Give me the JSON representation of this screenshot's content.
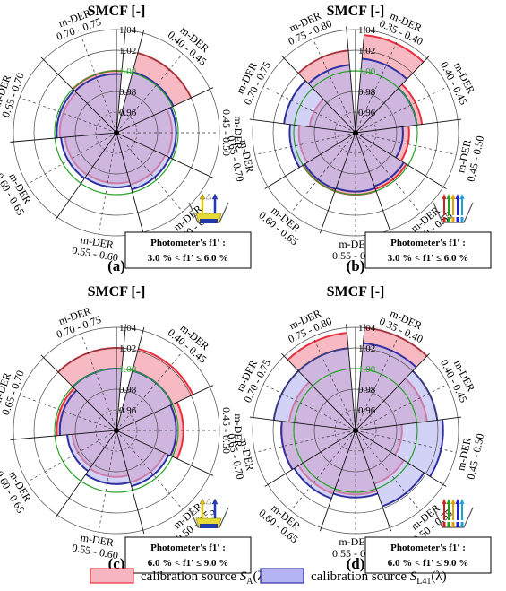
{
  "chart_data": [
    {
      "type": "polar-bar",
      "panel_label": "(a)",
      "title": "SMCF [-]",
      "rlim": [
        0.94,
        1.04
      ],
      "r_ticks": [
        "0.96",
        "0.98",
        "1.00",
        "1.02",
        "1.04"
      ],
      "sectors": [
        "m-DER\n0.40 - 0.45",
        "m-DER\n0.45 - 0.50",
        "m-DER\n0.50 - 0.55",
        "m-DER\n0.55 - 0.60",
        "m-DER\n0.60 - 0.65",
        "m-DER\n0.65 - 0.70",
        "m-DER\n0.70 - 0.75"
      ],
      "sector_labels": [
        {
          "top": "m-DER",
          "bottom": "0.40 - 0.45"
        },
        {
          "top": "m-DER",
          "bottom": "0.45 - 0.50"
        },
        {
          "top": "m-DER",
          "bottom": "0.50 - 0.55"
        },
        {
          "top": "m-DER",
          "bottom": "0.55 - 0.60"
        },
        {
          "top": "m-DER",
          "bottom": "0.60 - 0.65"
        },
        {
          "top": "m-DER",
          "bottom": "0.65 - 0.70"
        },
        {
          "top": "m-DER",
          "bottom": "0.70 - 0.75"
        }
      ],
      "series": [
        {
          "name": "calibration source SA(λ)",
          "values": [
            1.02,
            0.994,
            0.992,
            0.989,
            0.99,
            0.995,
            1.0
          ]
        },
        {
          "name": "calibration source SL41(λ)",
          "values": [
            1.001,
            0.998,
            0.997,
            0.993,
            0.994,
            0.998,
            0.997
          ]
        }
      ],
      "legend_box": {
        "title": "Photometer's f1′ :",
        "range": "3.0 % < f1′ ≤ 6.0 %"
      },
      "source_icon": "sa-lamp-icon"
    },
    {
      "type": "polar-bar",
      "panel_label": "(b)",
      "title": "SMCF [-]",
      "rlim": [
        0.94,
        1.04
      ],
      "r_ticks": [
        "0.96",
        "0.98",
        "1.00",
        "1.02",
        "1.04"
      ],
      "sectors": [
        "m-DER\n0.35 - 0.40",
        "m-DER\n0.40 - 0.45",
        "m-DER\n0.45 - 0.50",
        "m-DER\n0.50 - 0.55",
        "m-DER\n0.55 - 0.60",
        "m-DER\n0.60 - 0.65",
        "m-DER\n0.65 - 0.70",
        "m-DER\n0.70 - 0.75",
        "m-DER\n0.75 - 0.80"
      ],
      "sector_labels": [
        {
          "top": "m-DER",
          "bottom": "0.35 - 0.40"
        },
        {
          "top": "m-DER",
          "bottom": "0.40 - 0.45"
        },
        {
          "top": "m-DER",
          "bottom": "0.45 - 0.50"
        },
        {
          "top": "m-DER",
          "bottom": "0.50 - 0.55"
        },
        {
          "top": "m-DER",
          "bottom": "0.55 - 0.60"
        },
        {
          "top": "m-DER",
          "bottom": "0.60 - 0.65"
        },
        {
          "top": "m-DER",
          "bottom": "0.65 - 0.70"
        },
        {
          "top": "m-DER",
          "bottom": "0.70 - 0.75"
        },
        {
          "top": "m-DER",
          "bottom": "0.75 - 0.80"
        }
      ],
      "series": [
        {
          "name": "calibration source SA(λ)",
          "values": [
            1.035,
            1.005,
            0.992,
            0.998,
            1.0,
            1.0,
            0.995,
            0.985,
            1.02
          ]
        },
        {
          "name": "calibration source SL41(λ)",
          "values": [
            1.012,
            1.0,
            0.986,
            0.995,
            0.997,
            0.998,
            1.004,
            1.01,
            1.006
          ]
        }
      ],
      "legend_box": {
        "title": "Photometer's f1′ :",
        "range": "3.0 % < f1′ ≤ 6.0 %"
      },
      "source_icon": "sl41-led-icon"
    },
    {
      "type": "polar-bar",
      "panel_label": "(c)",
      "title": "SMCF [-]",
      "rlim": [
        0.94,
        1.04
      ],
      "r_ticks": [
        "0.96",
        "0.98",
        "1.00",
        "1.02",
        "1.04"
      ],
      "sectors": [
        "m-DER\n0.40 - 0.45",
        "m-DER\n0.45 - 0.50",
        "m-DER\n0.50 - 0.55",
        "m-DER\n0.55 - 0.60",
        "m-DER\n0.60 - 0.65",
        "m-DER\n0.65 - 0.70",
        "m-DER\n0.70 - 0.75"
      ],
      "sector_labels": [
        {
          "top": "m-DER",
          "bottom": "0.40 - 0.45"
        },
        {
          "top": "m-DER",
          "bottom": "0.45 - 0.50"
        },
        {
          "top": "m-DER",
          "bottom": "0.50 - 0.55"
        },
        {
          "top": "m-DER",
          "bottom": "0.55 - 0.60"
        },
        {
          "top": "m-DER",
          "bottom": "0.60 - 0.65"
        },
        {
          "top": "m-DER",
          "bottom": "0.65 - 0.70"
        },
        {
          "top": "m-DER",
          "bottom": "0.70 - 0.75"
        }
      ],
      "series": [
        {
          "name": "calibration source SA(λ)",
          "values": [
            1.022,
            1.005,
            0.992,
            0.985,
            0.983,
            0.998,
            1.02
          ]
        },
        {
          "name": "calibration source SL41(λ)",
          "values": [
            1.0,
            0.998,
            0.996,
            0.992,
            0.988,
            0.995,
            1.0
          ]
        }
      ],
      "legend_box": {
        "title": "Photometer's f1′ :",
        "range": "6.0 % < f1′ ≤ 9.0 %"
      },
      "source_icon": "sa-lamp-icon"
    },
    {
      "type": "polar-bar",
      "panel_label": "(d)",
      "title": "SMCF [-]",
      "rlim": [
        0.94,
        1.04
      ],
      "r_ticks": [
        "0.96",
        "0.98",
        "1.00",
        "1.02",
        "1.04"
      ],
      "sectors": [
        "m-DER\n0.35 - 0.40",
        "m-DER\n0.40 - 0.45",
        "m-DER\n0.45 - 0.50",
        "m-DER\n0.50 - 0.55",
        "m-DER\n0.55 - 0.60",
        "m-DER\n0.60 - 0.65",
        "m-DER\n0.65 - 0.70",
        "m-DER\n0.70 - 0.75",
        "m-DER\n0.75 - 0.80"
      ],
      "sector_labels": [
        {
          "top": "m-DER",
          "bottom": "0.35 - 0.40"
        },
        {
          "top": "m-DER",
          "bottom": "0.40 - 0.45"
        },
        {
          "top": "m-DER",
          "bottom": "0.45 - 0.50"
        },
        {
          "top": "m-DER",
          "bottom": "0.50 - 0.55"
        },
        {
          "top": "m-DER",
          "bottom": "0.55 - 0.60"
        },
        {
          "top": "m-DER",
          "bottom": "0.60 - 0.65"
        },
        {
          "top": "m-DER",
          "bottom": "0.65 - 0.70"
        },
        {
          "top": "m-DER",
          "bottom": "0.70 - 0.75"
        },
        {
          "top": "m-DER",
          "bottom": "0.75 - 0.80"
        }
      ],
      "series": [
        {
          "name": "calibration source SA(λ)",
          "values": [
            1.04,
            1.01,
            0.985,
            0.995,
            1.002,
            1.005,
            1.012,
            1.005,
            1.035
          ]
        },
        {
          "name": "calibration source SL41(λ)",
          "values": [
            1.025,
            1.02,
            1.025,
            1.018,
            1.005,
            1.01,
            1.012,
            1.02,
            1.02
          ]
        }
      ],
      "legend_box": {
        "title": "Photometer's f1′ :",
        "range": "6.0 % < f1′ ≤ 9.0 %"
      },
      "source_icon": "sl41-led-icon"
    }
  ],
  "legend": {
    "items": [
      {
        "text": "calibration source ",
        "sym": "S",
        "sub": "A",
        "tail": "(λ)"
      },
      {
        "text": "calibration source ",
        "sym": "S",
        "sub": "L41",
        "tail": "(λ)"
      }
    ]
  },
  "colors": {
    "sa_fill": "#f7b6bf",
    "sa_stroke": "#e8303f",
    "sl41_fill": "#b4b4f2",
    "sl41_stroke": "#2f2f9f",
    "ref_circle": "#27a327",
    "grid": "#4a4a4a",
    "tick_highlight": "#27a327"
  }
}
